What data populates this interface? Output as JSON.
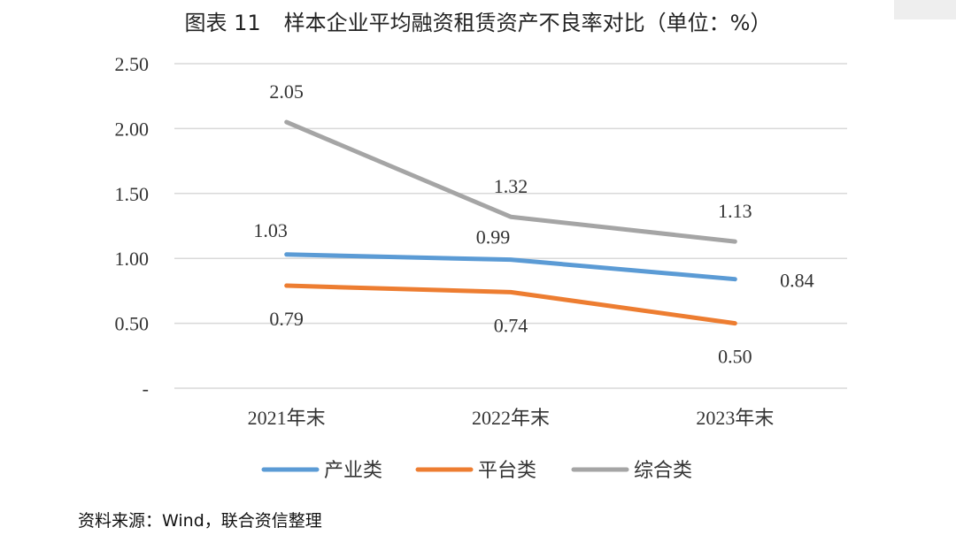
{
  "title_prefix": "图表 11",
  "title_text": "样本企业平均融资租赁资产不良率对比（单位：%）",
  "source_note": "资料来源：Wind，联合资信整理",
  "colors": {
    "产业类": "#5b9bd5",
    "平台类": "#ed7d31",
    "综合类": "#a5a5a5",
    "grid": "#d9d9d9"
  },
  "chart_data": {
    "type": "line",
    "categories": [
      "2021年末",
      "2022年末",
      "2023年末"
    ],
    "ylim": [
      0,
      2.5
    ],
    "yticks": [
      "-",
      "0.50",
      "1.00",
      "1.50",
      "2.00",
      "2.50"
    ],
    "grid": true,
    "legend": "bottom",
    "series": [
      {
        "name": "产业类",
        "values": [
          1.03,
          0.99,
          0.84
        ],
        "labels": [
          "1.03",
          "0.99",
          "0.84"
        ]
      },
      {
        "name": "平台类",
        "values": [
          0.79,
          0.74,
          0.5
        ],
        "labels": [
          "0.79",
          "0.74",
          "0.50"
        ]
      },
      {
        "name": "综合类",
        "values": [
          2.05,
          1.32,
          1.13
        ],
        "labels": [
          "2.05",
          "1.32",
          "1.13"
        ]
      }
    ]
  }
}
